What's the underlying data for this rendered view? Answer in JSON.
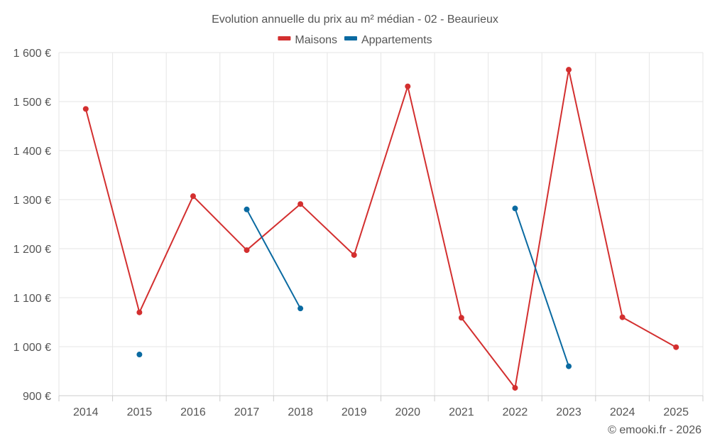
{
  "chart_data": {
    "type": "line",
    "title": "Evolution annuelle du prix au m² médian - 02 - Beaurieux",
    "categories": [
      "2014",
      "2015",
      "2016",
      "2017",
      "2018",
      "2019",
      "2020",
      "2021",
      "2022",
      "2023",
      "2024",
      "2025"
    ],
    "series": [
      {
        "name": "Maisons",
        "color": "#d32f2f",
        "values": [
          1485,
          1070,
          1307,
          1197,
          1291,
          1187,
          1531,
          1059,
          916,
          1565,
          1060,
          999
        ]
      },
      {
        "name": "Appartements",
        "color": "#0a6aa1",
        "values": [
          null,
          984,
          null,
          1280,
          1078,
          null,
          null,
          null,
          1282,
          960,
          null,
          null
        ]
      }
    ],
    "ylim": [
      900,
      1600
    ],
    "yticks": [
      900,
      1000,
      1100,
      1200,
      1300,
      1400,
      1500,
      1600
    ],
    "ytick_labels": [
      "900 €",
      "1 000 €",
      "1 100 €",
      "1 200 €",
      "1 300 €",
      "1 400 €",
      "1 500 €",
      "1 600 €"
    ],
    "xlabel": "",
    "ylabel": "",
    "grid": true,
    "legend_position": "top-center"
  },
  "credit": "© emooki.fr - 2026"
}
